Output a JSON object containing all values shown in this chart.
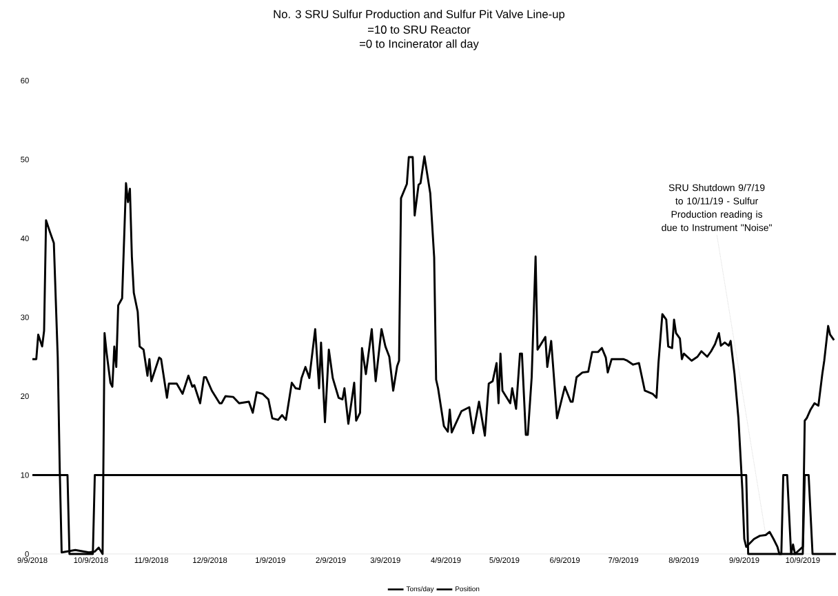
{
  "chart_data": {
    "type": "line",
    "title": "No. 3 SRU Sulfur Production and Sulfur Pit Valve Line-up",
    "subtitle": "=10 to SRU Reactor",
    "annotations": [
      "=0 to Incinerator all day",
      {
        "text": "SRU Shutdown 9/7/19 to 10/11/19 - Sulfur Production reading is due to Instrument \"Noise\"",
        "x": "2019-09-20",
        "y": 2.4
      }
    ],
    "xlim": [
      "2018-09-09",
      "2019-10-26"
    ],
    "xticks": [
      {
        "value": "2018-09-09",
        "label": "9/9/2018"
      },
      {
        "value": "2018-10-09",
        "label": "10/9/2018"
      },
      {
        "value": "2018-11-09",
        "label": "11/9/2018"
      },
      {
        "value": "2018-12-09",
        "label": "12/9/2018"
      },
      {
        "value": "2019-01-09",
        "label": "1/9/2019"
      },
      {
        "value": "2019-02-09",
        "label": "2/9/2019"
      },
      {
        "value": "2019-03-09",
        "label": "3/9/2019"
      },
      {
        "value": "2019-04-09",
        "label": "4/9/2019"
      },
      {
        "value": "2019-05-09",
        "label": "5/9/2019"
      },
      {
        "value": "2019-06-09",
        "label": "6/9/2019"
      },
      {
        "value": "2019-07-09",
        "label": "7/9/2019"
      },
      {
        "value": "2019-08-09",
        "label": "8/9/2019"
      },
      {
        "value": "2019-09-09",
        "label": "9/9/2019"
      },
      {
        "value": "2019-10-09",
        "label": "10/9/2019"
      }
    ],
    "ylim": [
      0,
      60
    ],
    "yticks": [
      0,
      10,
      20,
      30,
      40,
      50,
      60
    ],
    "legend": "bottom",
    "series": [
      {
        "name": "Tons/day",
        "color": "#000000",
        "x": [
          "2018-09-09",
          "2018-09-11",
          "2018-09-12",
          "2018-09-14",
          "2018-09-15",
          "2018-09-16",
          "2018-09-18",
          "2018-09-20",
          "2018-09-22",
          "2018-09-23",
          "2018-09-24",
          "2018-10-01",
          "2018-10-08",
          "2018-10-11",
          "2018-10-13",
          "2018-10-15",
          "2018-10-16",
          "2018-10-17",
          "2018-10-19",
          "2018-10-20",
          "2018-10-21",
          "2018-10-22",
          "2018-10-23",
          "2018-10-25",
          "2018-10-27",
          "2018-10-28",
          "2018-10-29",
          "2018-10-30",
          "2018-10-31",
          "2018-11-02",
          "2018-11-03",
          "2018-11-05",
          "2018-11-07",
          "2018-11-08",
          "2018-11-09",
          "2018-11-13",
          "2018-11-14",
          "2018-11-17",
          "2018-11-18",
          "2018-11-22",
          "2018-11-25",
          "2018-11-28",
          "2018-11-30",
          "2018-12-01",
          "2018-12-04",
          "2018-12-06",
          "2018-12-07",
          "2018-12-10",
          "2018-12-14",
          "2018-12-15",
          "2018-12-17",
          "2018-12-21",
          "2018-12-24",
          "2018-12-29",
          "2018-12-31",
          "2019-01-02",
          "2019-01-05",
          "2019-01-08",
          "2019-01-10",
          "2019-01-13",
          "2019-01-15",
          "2019-01-17",
          "2019-01-20",
          "2019-01-22",
          "2019-01-24",
          "2019-01-25",
          "2019-01-27",
          "2019-01-29",
          "2019-02-01",
          "2019-02-03",
          "2019-02-04",
          "2019-02-06",
          "2019-02-08",
          "2019-02-10",
          "2019-02-13",
          "2019-02-15",
          "2019-02-16",
          "2019-02-18",
          "2019-02-21",
          "2019-02-22",
          "2019-02-24",
          "2019-02-25",
          "2019-02-27",
          "2019-03-02",
          "2019-03-04",
          "2019-03-07",
          "2019-03-09",
          "2019-03-11",
          "2019-03-13",
          "2019-03-15",
          "2019-03-16",
          "2019-03-17",
          "2019-03-20",
          "2019-03-21",
          "2019-03-23",
          "2019-03-24",
          "2019-03-26",
          "2019-03-27",
          "2019-03-29",
          "2019-04-01",
          "2019-04-03",
          "2019-04-04",
          "2019-04-05",
          "2019-04-08",
          "2019-04-10",
          "2019-04-11",
          "2019-04-12",
          "2019-04-14",
          "2019-04-17",
          "2019-04-21",
          "2019-04-23",
          "2019-04-26",
          "2019-04-29",
          "2019-05-01",
          "2019-05-03",
          "2019-05-05",
          "2019-05-06",
          "2019-05-07",
          "2019-05-08",
          "2019-05-12",
          "2019-05-13",
          "2019-05-15",
          "2019-05-17",
          "2019-05-18",
          "2019-05-20",
          "2019-05-21",
          "2019-05-23",
          "2019-05-25",
          "2019-05-26",
          "2019-05-30",
          "2019-05-31",
          "2019-06-02",
          "2019-06-05",
          "2019-06-09",
          "2019-06-12",
          "2019-06-13",
          "2019-06-15",
          "2019-06-18",
          "2019-06-21",
          "2019-06-23",
          "2019-06-26",
          "2019-06-28",
          "2019-06-30",
          "2019-07-01",
          "2019-07-03",
          "2019-07-09",
          "2019-07-11",
          "2019-07-14",
          "2019-07-17",
          "2019-07-20",
          "2019-07-24",
          "2019-07-26",
          "2019-07-27",
          "2019-07-29",
          "2019-07-31",
          "2019-08-01",
          "2019-08-03",
          "2019-08-04",
          "2019-08-05",
          "2019-08-07",
          "2019-08-08",
          "2019-08-09",
          "2019-08-13",
          "2019-08-16",
          "2019-08-18",
          "2019-08-21",
          "2019-08-23",
          "2019-08-25",
          "2019-08-27",
          "2019-08-28",
          "2019-08-30",
          "2019-09-01",
          "2019-09-02",
          "2019-09-04",
          "2019-09-06",
          "2019-09-08",
          "2019-09-09",
          "2019-09-10",
          "2019-09-14",
          "2019-09-17",
          "2019-09-20",
          "2019-09-22",
          "2019-09-24",
          "2019-09-26",
          "2019-09-27",
          "2019-10-03",
          "2019-10-04",
          "2019-10-05",
          "2019-10-09",
          "2019-10-10",
          "2019-10-11",
          "2019-10-13",
          "2019-10-15",
          "2019-10-17",
          "2019-10-19",
          "2019-10-20",
          "2019-10-22",
          "2019-10-23",
          "2019-10-25"
        ],
        "values": [
          24.7,
          24.7,
          27.8,
          26.3,
          28.3,
          42.3,
          40.8,
          39.4,
          24.9,
          11,
          0.2,
          0.5,
          0.2,
          0.3,
          0.8,
          0,
          28,
          25.6,
          21.7,
          21.2,
          26.3,
          23.7,
          31.5,
          32.4,
          47,
          44.6,
          46.3,
          37.7,
          33.1,
          30.7,
          26.3,
          25.9,
          22.6,
          24.7,
          21.9,
          24.9,
          24.7,
          19.8,
          21.6,
          21.6,
          20.3,
          22.6,
          21.2,
          21.4,
          19.1,
          22.4,
          22.4,
          20.7,
          19.1,
          19.1,
          20,
          19.9,
          19.1,
          19.3,
          17.9,
          20.5,
          20.3,
          19.6,
          17.2,
          17,
          17.6,
          17,
          21.7,
          21,
          20.9,
          22.3,
          23.7,
          22.3,
          28.5,
          21,
          26.8,
          16.7,
          25.9,
          22.3,
          19.8,
          19.6,
          21,
          16.5,
          21.7,
          16.9,
          17.9,
          26.1,
          22.8,
          28.5,
          21.9,
          28.5,
          26.3,
          25,
          20.7,
          23.8,
          24.5,
          45.1,
          46.9,
          50.3,
          50.3,
          42.9,
          46.8,
          47,
          50.4,
          45.7,
          37.6,
          22.1,
          21,
          16.2,
          15.5,
          18.3,
          15.4,
          16.5,
          18.1,
          18.6,
          15.3,
          19.3,
          15,
          21.6,
          21.9,
          24.2,
          19.1,
          25.4,
          20.7,
          19.1,
          21,
          18.4,
          25.4,
          25.4,
          15.1,
          15.1,
          22.4,
          37.7,
          25.9,
          27.5,
          23.7,
          27,
          17.2,
          21.2,
          19.3,
          19.3,
          22.4,
          23,
          23.1,
          25.6,
          25.6,
          26.1,
          24.9,
          23,
          24.7,
          24.7,
          24.5,
          24,
          24.2,
          20.7,
          20.3,
          19.8,
          24.2,
          30.4,
          29.7,
          26.3,
          26.1,
          29.7,
          28,
          27.3,
          24.7,
          25.4,
          24.5,
          25,
          25.7,
          25,
          25.7,
          26.6,
          28,
          26.4,
          26.8,
          26.4,
          27,
          22.8,
          17.2,
          8.2,
          1.9,
          0.9,
          1.9,
          2.3,
          2.4,
          2.8,
          1.9,
          0.9,
          0,
          0,
          1.2,
          0,
          0.9,
          16.9,
          17.2,
          18.3,
          19.1,
          18.8,
          22.8,
          24.5,
          28.9,
          27.8,
          27.1
        ]
      },
      {
        "name": "Position",
        "color": "#000000",
        "x": [
          "2018-09-09",
          "2018-09-27",
          "2018-09-28",
          "2018-10-10",
          "2018-10-11",
          "2019-09-10",
          "2019-09-11",
          "2019-09-28",
          "2019-09-29",
          "2019-10-01",
          "2019-10-03",
          "2019-10-09",
          "2019-10-10",
          "2019-10-12",
          "2019-10-14",
          "2019-10-26"
        ],
        "values": [
          10,
          10,
          0,
          0,
          10,
          10,
          0,
          0,
          10,
          10,
          0,
          0,
          10,
          10,
          0,
          0
        ]
      }
    ]
  }
}
